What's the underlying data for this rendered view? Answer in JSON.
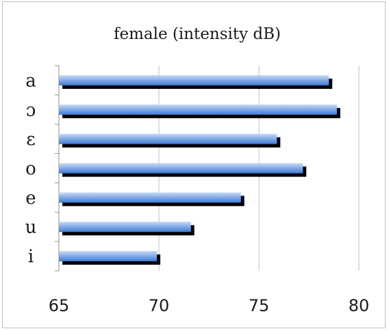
{
  "chart_data": {
    "type": "bar",
    "orientation": "horizontal",
    "title": "female (intensity dB)",
    "xlabel": "",
    "ylabel": "",
    "categories": [
      "a",
      "ɔ",
      "ɛ",
      "o",
      "e",
      "u",
      "i"
    ],
    "values": [
      78.5,
      78.9,
      75.9,
      77.2,
      74.1,
      71.6,
      69.9
    ],
    "xlim": [
      65,
      80
    ],
    "xticks": [
      "65",
      "70",
      "75",
      "80"
    ],
    "grid": "vertical",
    "legend": "none",
    "colors": {
      "bar_light": "#c6dbf7",
      "bar_dark": "#3f78d6",
      "shadow": "#000000",
      "grid": "#bfbfbf",
      "frame": "#bfbfbf"
    }
  }
}
